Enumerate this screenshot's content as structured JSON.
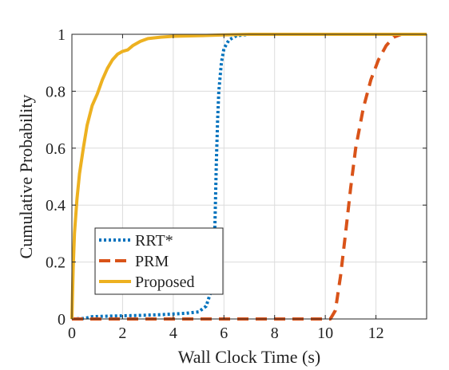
{
  "caption_fragment": "",
  "chart_data": {
    "type": "line",
    "title": "",
    "xlabel": "Wall Clock Time (s)",
    "ylabel": "Cumulative Probability",
    "xlim": [
      0,
      14
    ],
    "ylim": [
      0,
      1
    ],
    "xticks": [
      0,
      2,
      4,
      6,
      8,
      10,
      12
    ],
    "yticks": [
      0,
      0.2,
      0.4,
      0.6,
      0.8,
      1
    ],
    "xtick_labels": [
      "0",
      "2",
      "4",
      "6",
      "8",
      "10",
      "12"
    ],
    "ytick_labels": [
      "0",
      "0.2",
      "0.4",
      "0.6",
      "0.8",
      "1"
    ],
    "grid": true,
    "legend_position": "bottom-left",
    "series": [
      {
        "name": "RRT*",
        "color": "#0072BD",
        "style": "dotted",
        "points": [
          [
            0,
            0
          ],
          [
            0.5,
            0.002
          ],
          [
            0.8,
            0.008
          ],
          [
            1.5,
            0.01
          ],
          [
            2.5,
            0.012
          ],
          [
            3.5,
            0.015
          ],
          [
            4.5,
            0.02
          ],
          [
            5.0,
            0.025
          ],
          [
            5.3,
            0.045
          ],
          [
            5.5,
            0.1
          ],
          [
            5.6,
            0.2
          ],
          [
            5.65,
            0.35
          ],
          [
            5.7,
            0.55
          ],
          [
            5.75,
            0.7
          ],
          [
            5.8,
            0.8
          ],
          [
            5.9,
            0.9
          ],
          [
            6.0,
            0.95
          ],
          [
            6.2,
            0.98
          ],
          [
            6.5,
            0.995
          ],
          [
            7,
            1
          ],
          [
            14,
            1
          ]
        ]
      },
      {
        "name": "PRM",
        "color": "#D95319",
        "style": "dashed",
        "points": [
          [
            0,
            0
          ],
          [
            10.2,
            0
          ],
          [
            10.4,
            0.03
          ],
          [
            10.6,
            0.15
          ],
          [
            10.8,
            0.3
          ],
          [
            11.0,
            0.46
          ],
          [
            11.2,
            0.6
          ],
          [
            11.5,
            0.74
          ],
          [
            11.8,
            0.84
          ],
          [
            12.1,
            0.91
          ],
          [
            12.4,
            0.96
          ],
          [
            12.7,
            0.99
          ],
          [
            13.0,
            1
          ],
          [
            14,
            1
          ]
        ]
      },
      {
        "name": "Proposed",
        "color": "#EDB120",
        "style": "solid",
        "points": [
          [
            0,
            0
          ],
          [
            0.05,
            0.18
          ],
          [
            0.1,
            0.3
          ],
          [
            0.2,
            0.42
          ],
          [
            0.3,
            0.51
          ],
          [
            0.45,
            0.6
          ],
          [
            0.6,
            0.68
          ],
          [
            0.8,
            0.75
          ],
          [
            1.0,
            0.79
          ],
          [
            1.2,
            0.84
          ],
          [
            1.4,
            0.88
          ],
          [
            1.6,
            0.91
          ],
          [
            1.8,
            0.93
          ],
          [
            2.0,
            0.94
          ],
          [
            2.2,
            0.945
          ],
          [
            2.4,
            0.96
          ],
          [
            2.7,
            0.975
          ],
          [
            3.0,
            0.985
          ],
          [
            3.5,
            0.99
          ],
          [
            4.0,
            0.993
          ],
          [
            5.0,
            0.995
          ],
          [
            6.0,
            0.998
          ],
          [
            7.0,
            1
          ],
          [
            14,
            1
          ]
        ]
      }
    ]
  }
}
